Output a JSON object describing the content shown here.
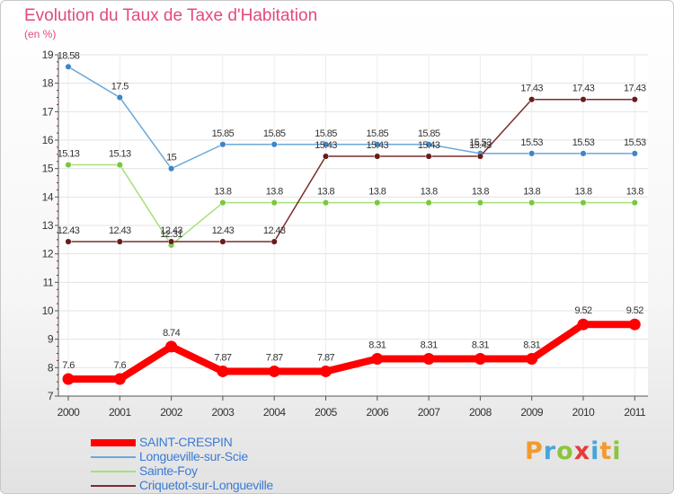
{
  "header": {
    "title": "Evolution du Taux de Taxe d'Habitation",
    "unit": "(en %)"
  },
  "logo": {
    "text": "Proxiti",
    "letters": [
      "P",
      "r",
      "o",
      "x",
      "i",
      "t",
      "i"
    ],
    "colors": [
      "#f29a2e",
      "#46a6dc",
      "#8cc43c",
      "#e83a3a",
      "#46a6dc",
      "#f29a2e",
      "#8cc43c"
    ]
  },
  "chart_data": {
    "type": "line",
    "title": "Evolution du Taux de Taxe d'Habitation",
    "ylabel": "(en %)",
    "xlabel": "",
    "x": [
      "2000",
      "2001",
      "2002",
      "2003",
      "2004",
      "2005",
      "2006",
      "2007",
      "2008",
      "2009",
      "2010",
      "2011"
    ],
    "ylim": [
      7,
      19
    ],
    "yticks": [
      7,
      8,
      9,
      10,
      11,
      12,
      13,
      14,
      15,
      16,
      17,
      18,
      19
    ],
    "grid": true,
    "legend": "bottom-left",
    "series": [
      {
        "name": "SAINT-CRESPIN",
        "color": "#ff0000",
        "markerColor": "#ff0000",
        "bold": true,
        "values": [
          7.6,
          7.6,
          8.74,
          7.87,
          7.87,
          7.87,
          8.31,
          8.31,
          8.31,
          8.31,
          9.52,
          9.52
        ],
        "labels": [
          "7.6",
          "7.6",
          "8.74",
          "7.87",
          "7.87",
          "7.87",
          "8.31",
          "8.31",
          "8.31",
          "8.31",
          "9.52",
          "9.52"
        ]
      },
      {
        "name": "Longueville-sur-Scie",
        "color": "#6ca8d8",
        "markerColor": "#3d86c6",
        "bold": false,
        "values": [
          18.58,
          17.5,
          15,
          15.85,
          15.85,
          15.85,
          15.85,
          15.85,
          15.53,
          15.53,
          15.53,
          15.53
        ],
        "labels": [
          "18.58",
          "17.5",
          "15",
          "15.85",
          "15.85",
          "15.85",
          "15.85",
          "15.85",
          "15.53",
          "15.53",
          "15.53",
          "15.53"
        ]
      },
      {
        "name": "Sainte-Foy",
        "color": "#a6e07a",
        "markerColor": "#78c83c",
        "bold": false,
        "values": [
          15.13,
          15.13,
          12.31,
          13.8,
          13.8,
          13.8,
          13.8,
          13.8,
          13.8,
          13.8,
          13.8,
          13.8
        ],
        "labels": [
          "15.13",
          "15.13",
          "12.31",
          "13.8",
          "13.8",
          "13.8",
          "13.8",
          "13.8",
          "13.8",
          "13.8",
          "13.8",
          "13.8"
        ]
      },
      {
        "name": "Criquetot-sur-Longueville",
        "color": "#7a2c2c",
        "markerColor": "#6a1c1c",
        "bold": false,
        "values": [
          12.43,
          12.43,
          12.43,
          12.43,
          12.43,
          15.43,
          15.43,
          15.43,
          15.43,
          17.43,
          17.43,
          17.43
        ],
        "labels": [
          "12.43",
          "12.43",
          "12.43",
          "12.43",
          "12.43",
          "15.43",
          "15.43",
          "15.43",
          "15.43",
          "17.43",
          "17.43",
          "17.43"
        ]
      }
    ]
  }
}
